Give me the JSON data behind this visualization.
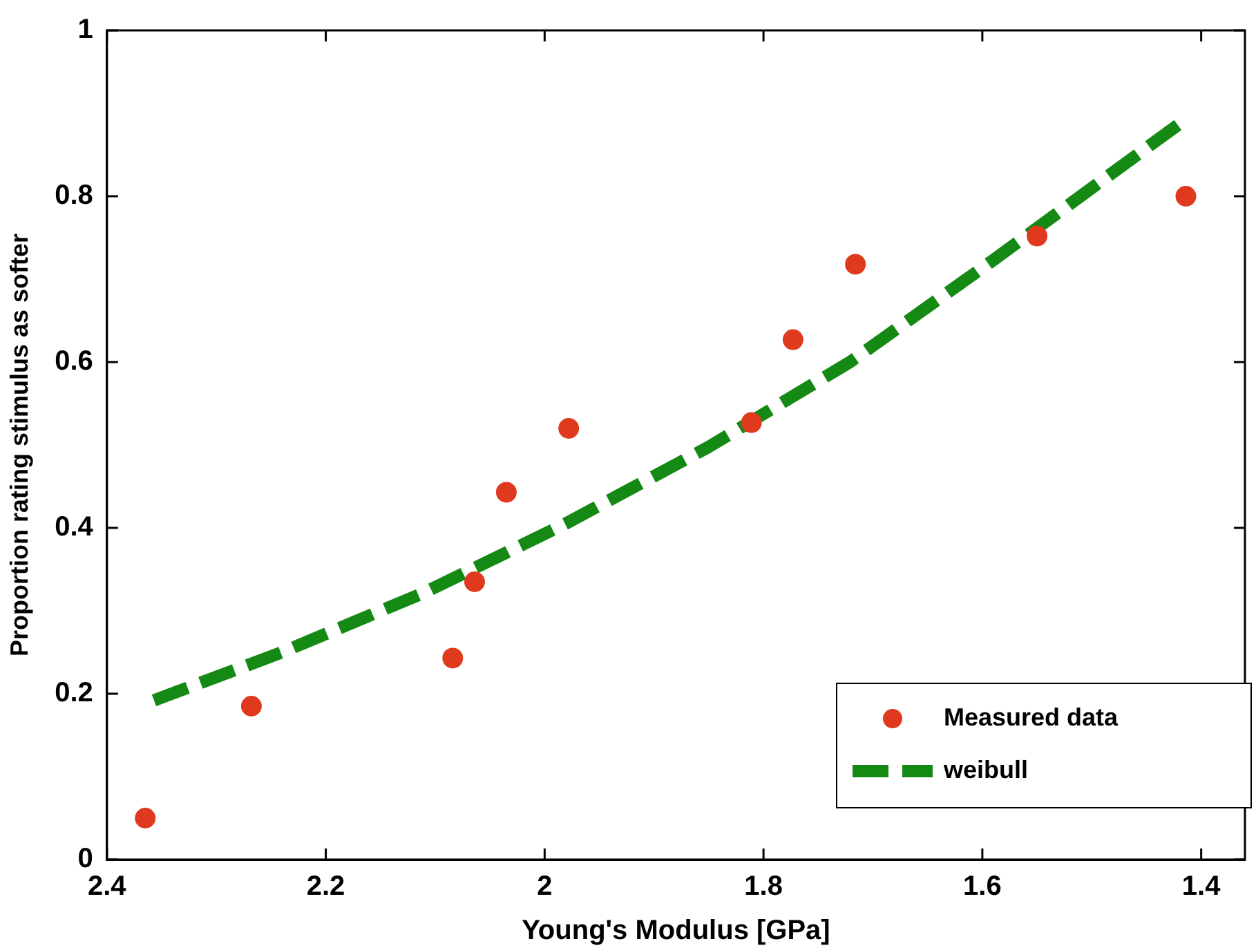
{
  "chart_data": {
    "type": "scatter",
    "xlabel": "Young's Modulus [GPa]",
    "ylabel": "Proportion rating stimulus as softer",
    "xlim": [
      2.4,
      1.36
    ],
    "xticks": [
      2.4,
      2.2,
      2,
      1.8,
      1.6,
      1.4
    ],
    "ylim": [
      0,
      1
    ],
    "yticks": [
      0,
      0.2,
      0.4,
      0.6,
      0.8,
      1
    ],
    "grid": false,
    "legend": "bottom right",
    "series": [
      {
        "name": "Measured data",
        "marker": "circle",
        "color": "#e03a1e",
        "x": [
          2.365,
          2.268,
          2.084,
          2.064,
          2.035,
          1.978,
          1.811,
          1.773,
          1.716,
          1.55,
          1.414
        ],
        "values": [
          0.05,
          0.185,
          0.243,
          0.335,
          0.443,
          0.52,
          0.527,
          0.627,
          0.718,
          0.752,
          0.8
        ]
      },
      {
        "name": "weibull",
        "type": "line",
        "marker": "none",
        "line_style": "dashed",
        "color": "#148a14",
        "x": [
          2.357,
          2.24,
          2.11,
          1.981,
          1.851,
          1.721,
          1.591,
          1.414
        ],
        "values": [
          0.192,
          0.25,
          0.322,
          0.405,
          0.497,
          0.6,
          0.722,
          0.893
        ]
      }
    ]
  }
}
